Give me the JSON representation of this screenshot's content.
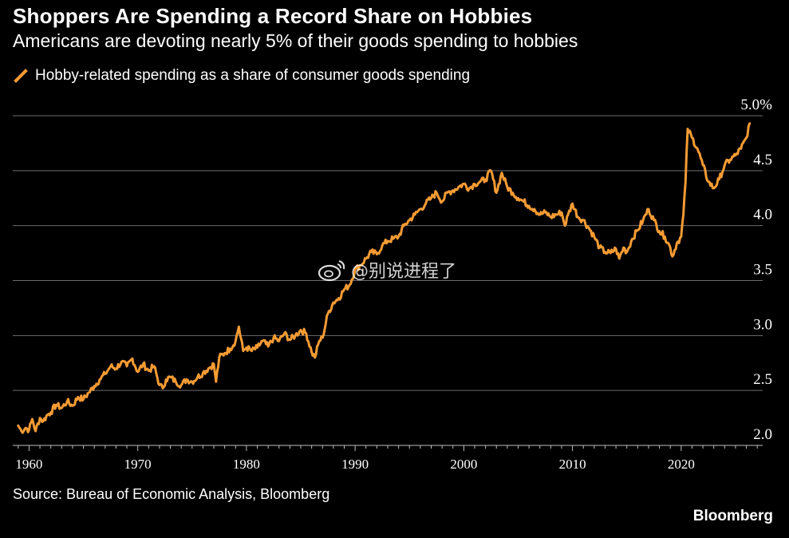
{
  "header": {
    "title": "Shoppers Are Spending a Record Share on Hobbies",
    "subtitle": "Americans are devoting nearly 5% of their goods spending to hobbies"
  },
  "footer": {
    "source": "Source: Bureau of Economic Analysis, Bloomberg",
    "brand": "Bloomberg"
  },
  "watermark": {
    "text": "@别说进程了",
    "icon": "weibo-logo-icon"
  },
  "chart_data": {
    "type": "line",
    "title": "Shoppers Are Spending a Record Share on Hobbies",
    "subtitle": "Americans are devoting nearly 5% of their goods spending to hobbies",
    "xlabel": "",
    "ylabel": "",
    "xlim": [
      1958.5,
      2027.5
    ],
    "ylim": [
      2.0,
      5.0
    ],
    "grid": "horizontal",
    "legend_position": "top-left",
    "x_ticks": [
      1960,
      1970,
      1980,
      1990,
      2000,
      2010,
      2020
    ],
    "x_tick_labels": [
      "1960",
      "1970",
      "1980",
      "1990",
      "2000",
      "2010",
      "2020"
    ],
    "y_ticks": [
      2.0,
      2.5,
      3.0,
      3.5,
      4.0,
      4.5,
      5.0
    ],
    "y_tick_labels": [
      "2.0",
      "2.5",
      "3.0",
      "3.5",
      "4.0",
      "4.5",
      "5.0%"
    ],
    "series": [
      {
        "name": "Hobby-related spending as a share of consumer goods spending",
        "color": "#f59b34",
        "x": [
          1959.0,
          1959.3,
          1959.7,
          1960.0,
          1960.3,
          1960.6,
          1961.0,
          1961.3,
          1961.7,
          1962.0,
          1962.5,
          1963.0,
          1963.5,
          1964.0,
          1964.5,
          1965.0,
          1965.5,
          1966.0,
          1966.5,
          1967.0,
          1967.5,
          1968.0,
          1968.5,
          1969.0,
          1969.5,
          1970.0,
          1970.5,
          1971.0,
          1971.5,
          1972.0,
          1972.3,
          1972.6,
          1973.0,
          1973.5,
          1974.0,
          1974.5,
          1975.0,
          1975.5,
          1976.0,
          1976.5,
          1977.0,
          1977.2,
          1977.5,
          1978.0,
          1978.5,
          1979.0,
          1979.3,
          1979.7,
          1980.0,
          1980.5,
          1981.0,
          1981.5,
          1982.0,
          1982.5,
          1983.0,
          1983.5,
          1984.0,
          1984.5,
          1985.0,
          1985.5,
          1986.0,
          1986.3,
          1986.7,
          1987.0,
          1987.5,
          1988.0,
          1988.5,
          1989.0,
          1989.5,
          1990.0,
          1990.5,
          1991.0,
          1991.5,
          1992.0,
          1992.5,
          1993.0,
          1993.5,
          1994.0,
          1994.5,
          1995.0,
          1995.5,
          1996.0,
          1996.5,
          1997.0,
          1997.5,
          1998.0,
          1998.5,
          1999.0,
          1999.5,
          2000.0,
          2000.5,
          2001.0,
          2001.5,
          2002.0,
          2002.5,
          2003.0,
          2003.5,
          2004.0,
          2004.5,
          2005.0,
          2005.5,
          2006.0,
          2006.5,
          2007.0,
          2007.5,
          2008.0,
          2008.5,
          2009.0,
          2009.3,
          2009.6,
          2010.0,
          2010.5,
          2011.0,
          2011.5,
          2012.0,
          2012.5,
          2013.0,
          2013.5,
          2014.0,
          2014.3,
          2014.7,
          2015.0,
          2015.5,
          2016.0,
          2016.5,
          2017.0,
          2017.5,
          2018.0,
          2018.5,
          2019.0,
          2019.2,
          2019.6,
          2020.0,
          2020.2,
          2020.4,
          2020.6,
          2021.0,
          2021.5,
          2022.0,
          2022.5,
          2023.0,
          2023.5,
          2024.0,
          2024.5,
          2025.0,
          2025.5,
          2026.0,
          2026.3
        ],
        "values": [
          2.18,
          2.13,
          2.16,
          2.14,
          2.24,
          2.13,
          2.25,
          2.22,
          2.28,
          2.3,
          2.37,
          2.34,
          2.4,
          2.36,
          2.44,
          2.42,
          2.48,
          2.54,
          2.6,
          2.65,
          2.72,
          2.7,
          2.76,
          2.72,
          2.79,
          2.67,
          2.74,
          2.68,
          2.72,
          2.55,
          2.52,
          2.6,
          2.62,
          2.58,
          2.55,
          2.6,
          2.58,
          2.62,
          2.66,
          2.7,
          2.74,
          2.58,
          2.8,
          2.84,
          2.88,
          2.95,
          3.08,
          2.86,
          2.89,
          2.86,
          2.89,
          2.95,
          2.9,
          2.98,
          2.95,
          3.02,
          2.96,
          3.0,
          3.05,
          3.02,
          2.85,
          2.8,
          2.95,
          2.98,
          3.2,
          3.3,
          3.34,
          3.42,
          3.46,
          3.6,
          3.64,
          3.7,
          3.76,
          3.74,
          3.82,
          3.86,
          3.88,
          3.9,
          4.0,
          4.05,
          4.1,
          4.15,
          4.2,
          4.25,
          4.3,
          4.22,
          4.3,
          4.32,
          4.35,
          4.38,
          4.34,
          4.38,
          4.4,
          4.42,
          4.5,
          4.3,
          4.48,
          4.35,
          4.3,
          4.25,
          4.22,
          4.18,
          4.15,
          4.1,
          4.12,
          4.08,
          4.1,
          4.12,
          4.0,
          4.1,
          4.2,
          4.08,
          4.05,
          3.98,
          3.9,
          3.8,
          3.76,
          3.75,
          3.79,
          3.7,
          3.8,
          3.76,
          3.88,
          3.96,
          4.05,
          4.15,
          4.05,
          3.95,
          3.9,
          3.8,
          3.72,
          3.84,
          3.9,
          4.1,
          4.4,
          4.88,
          4.8,
          4.7,
          4.55,
          4.4,
          4.34,
          4.42,
          4.55,
          4.6,
          4.64,
          4.7,
          4.8,
          4.93
        ]
      }
    ]
  }
}
